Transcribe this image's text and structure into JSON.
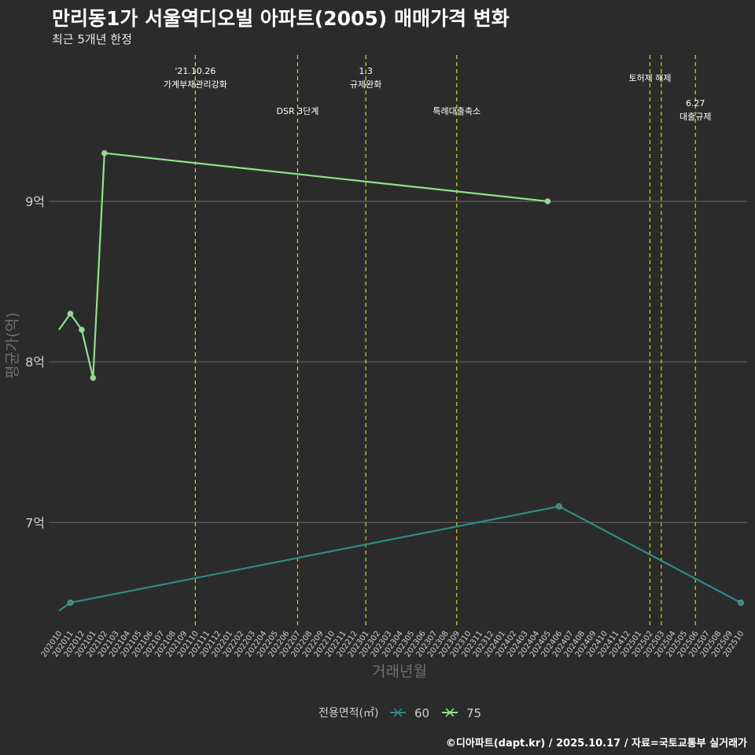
{
  "header": {
    "title": "만리동1가 서울역디오빌 아파트(2005) 매매가격 변화",
    "subtitle": "최근 5개년 한정"
  },
  "caption": "©디아파트(dapt.kr) / 2025.10.17 / 자료=국토교통부 실거래가",
  "colors": {
    "background": "#2b2b2b",
    "grid": "#6a6a6a",
    "event_line": "#d4d42a",
    "series_60": "#2e8b84",
    "series_75": "#8fe08a",
    "axis_text": "#cfcfcf"
  },
  "chart_data": {
    "type": "line",
    "title": "만리동1가 서울역디오빌 아파트(2005) 매매가격 변화",
    "subtitle": "최근 5개년 한정",
    "xlabel": "거래년월",
    "ylabel": "평균가(억)",
    "ylim": [
      6.35,
      9.95
    ],
    "yticks": [
      {
        "value": 7,
        "label": "7억"
      },
      {
        "value": 8,
        "label": "8억"
      },
      {
        "value": 9,
        "label": "9억"
      }
    ],
    "categories": [
      "202010",
      "202011",
      "202012",
      "202101",
      "202102",
      "202103",
      "202104",
      "202105",
      "202106",
      "202107",
      "202108",
      "202109",
      "202110",
      "202111",
      "202112",
      "202201",
      "202202",
      "202203",
      "202204",
      "202205",
      "202206",
      "202207",
      "202208",
      "202209",
      "202210",
      "202211",
      "202212",
      "202301",
      "202302",
      "202303",
      "202304",
      "202305",
      "202306",
      "202307",
      "202308",
      "202309",
      "202310",
      "202311",
      "202312",
      "202401",
      "202402",
      "202403",
      "202404",
      "202405",
      "202406",
      "202407",
      "202408",
      "202409",
      "202410",
      "202411",
      "202412",
      "202501",
      "202502",
      "202503",
      "202504",
      "202505",
      "202506",
      "202507",
      "202508",
      "202509",
      "202510"
    ],
    "series": [
      {
        "name": "60",
        "points": [
          {
            "x": "202010",
            "y": 6.45,
            "marker": false
          },
          {
            "x": "202011",
            "y": 6.5,
            "marker": true
          },
          {
            "x": "202406",
            "y": 7.1,
            "marker": true
          },
          {
            "x": "202510",
            "y": 6.5,
            "marker": true
          }
        ]
      },
      {
        "name": "75",
        "points": [
          {
            "x": "202010",
            "y": 8.2,
            "marker": false
          },
          {
            "x": "202011",
            "y": 8.3,
            "marker": true
          },
          {
            "x": "202012",
            "y": 8.2,
            "marker": true
          },
          {
            "x": "202101",
            "y": 7.9,
            "marker": true
          },
          {
            "x": "202102",
            "y": 9.3,
            "marker": true
          },
          {
            "x": "202405",
            "y": 9.0,
            "marker": true
          }
        ]
      }
    ],
    "events": [
      {
        "x": "202110",
        "label": [
          "'21.10.26",
          "가계부채관리강화"
        ],
        "row": "top"
      },
      {
        "x": "202207",
        "label": [
          "DSR 3단계"
        ],
        "row": "mid"
      },
      {
        "x": "202301",
        "label": [
          "1.3",
          "규제완화"
        ],
        "row": "top"
      },
      {
        "x": "202309",
        "label": [
          "특례대출축소"
        ],
        "row": "mid"
      },
      {
        "x": "202502",
        "label": [
          "토허제 해제"
        ],
        "row": "top2",
        "anchor": "right"
      },
      {
        "x": "202503",
        "label": [],
        "row": "none"
      },
      {
        "x": "202506",
        "label": [
          "6.27",
          "대출규제"
        ],
        "row": "mid"
      }
    ],
    "legend": {
      "title": "전용면적(㎡)",
      "items": [
        "60",
        "75"
      ],
      "position": "bottom"
    }
  }
}
